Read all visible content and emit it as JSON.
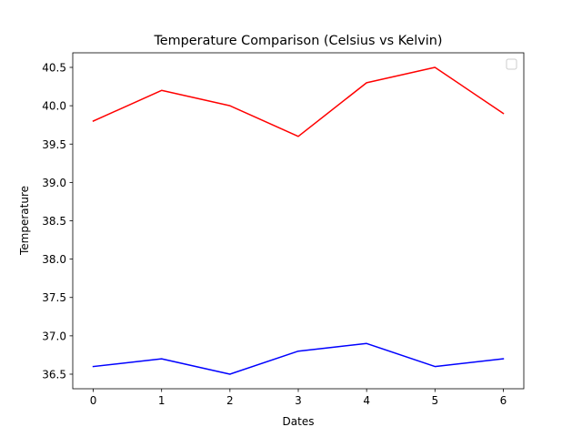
{
  "chart_data": {
    "type": "line",
    "title": "Temperature Comparison (Celsius vs Kelvin)",
    "xlabel": "Dates",
    "ylabel": "Temperature",
    "x": [
      0,
      1,
      2,
      3,
      4,
      5,
      6
    ],
    "x_ticks": [
      "0",
      "1",
      "2",
      "3",
      "4",
      "5",
      "6"
    ],
    "y_ticks": [
      "36.5",
      "37.0",
      "37.5",
      "38.0",
      "38.5",
      "39.0",
      "39.5",
      "40.0",
      "40.5"
    ],
    "xlim": [
      -0.3,
      6.3
    ],
    "ylim": [
      36.31,
      40.69
    ],
    "grid": false,
    "legend": {
      "placement": "top-right",
      "entries": []
    },
    "series": [
      {
        "color": "#ff0000",
        "values": [
          39.8,
          40.2,
          40.0,
          39.6,
          40.3,
          40.5,
          39.9
        ]
      },
      {
        "color": "#0000ff",
        "values": [
          36.6,
          36.7,
          36.5,
          36.8,
          36.9,
          36.6,
          36.7
        ]
      }
    ]
  }
}
